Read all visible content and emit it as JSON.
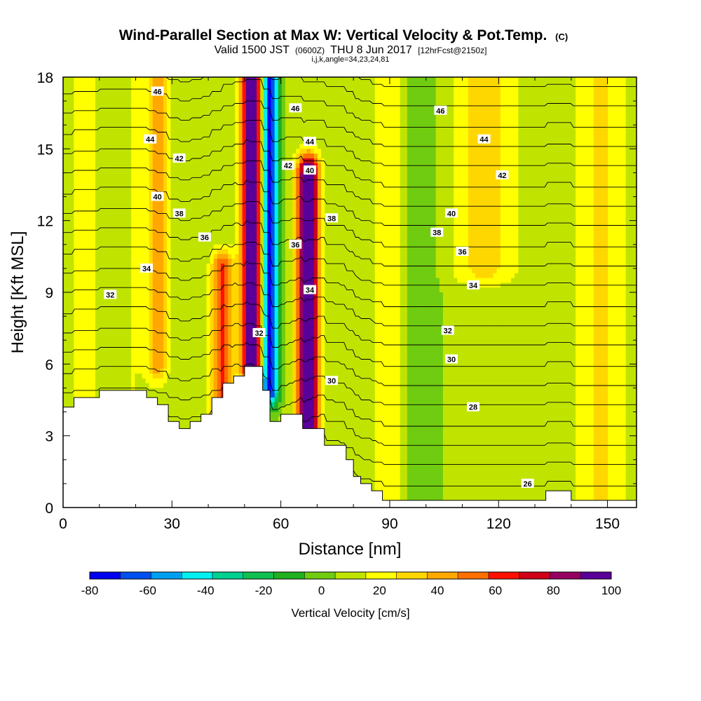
{
  "chart_data": {
    "type": "heatmap",
    "title": "Wind-Parallel Section at Max W: Vertical Velocity & Pot.Temp.",
    "title_units": "(C)",
    "subtitle": {
      "valid": "Valid 1500 JST",
      "utc": "(0600Z)",
      "date": "THU 8 Jun 2017",
      "forecast": "[12hrFcst@2150z]"
    },
    "subtitle2": "i,j,k,angle=34,23,24,81",
    "xlabel": "Distance [nm]",
    "ylabel": "Height [Kft MSL]",
    "xlim": [
      0,
      158
    ],
    "ylim": [
      0,
      18
    ],
    "xticks": [
      {
        "value": 0,
        "label": "0"
      },
      {
        "value": 30,
        "label": "30"
      },
      {
        "value": 60,
        "label": "60"
      },
      {
        "value": 90,
        "label": "90"
      },
      {
        "value": 120,
        "label": "120"
      },
      {
        "value": 150,
        "label": "150"
      }
    ],
    "yticks": [
      {
        "value": 0,
        "label": "0"
      },
      {
        "value": 3,
        "label": "3"
      },
      {
        "value": 6,
        "label": "6"
      },
      {
        "value": 9,
        "label": "9"
      },
      {
        "value": 12,
        "label": "12"
      },
      {
        "value": 15,
        "label": "15"
      },
      {
        "value": 18,
        "label": "18"
      }
    ],
    "colorbar": {
      "label": "Vertical Velocity [cm/s]",
      "range": [
        -80,
        100
      ],
      "step": 10,
      "ticks": [
        {
          "value": -80,
          "label": "-80"
        },
        {
          "value": -60,
          "label": "-60"
        },
        {
          "value": -40,
          "label": "-40"
        },
        {
          "value": -20,
          "label": "-20"
        },
        {
          "value": 0,
          "label": "0"
        },
        {
          "value": 20,
          "label": "20"
        },
        {
          "value": 40,
          "label": "40"
        },
        {
          "value": 60,
          "label": "60"
        },
        {
          "value": 80,
          "label": "80"
        },
        {
          "value": 100,
          "label": "100"
        }
      ],
      "colors": [
        "#0000f0",
        "#0050f0",
        "#00a0f0",
        "#00f0f0",
        "#00d090",
        "#10c050",
        "#20b020",
        "#70cc10",
        "#c0e400",
        "#ffff00",
        "#ffd700",
        "#ffa800",
        "#ff7000",
        "#ff1000",
        "#d00018",
        "#960060",
        "#5a0098"
      ]
    },
    "velocity_features": [
      {
        "name": "updraft",
        "x": 6,
        "peak": 12,
        "width": 4,
        "ymin": 0,
        "ymax": 18
      },
      {
        "name": "updraft",
        "x": 19,
        "peak": 8,
        "width": 4,
        "ymin": 0,
        "ymax": 18
      },
      {
        "name": "updraft",
        "x": 26,
        "peak": 34,
        "width": 3,
        "ymin": 6,
        "ymax": 18
      },
      {
        "name": "updraft",
        "x": 44,
        "peak": 52,
        "width": 3,
        "ymin": 3,
        "ymax": 10
      },
      {
        "name": "updraft",
        "x": 52,
        "peak": 100,
        "width": 2.8,
        "ymin": 6,
        "ymax": 18
      },
      {
        "name": "downdraft",
        "x": 57,
        "peak": -80,
        "width": 2.4,
        "ymin": 5,
        "ymax": 18
      },
      {
        "name": "updraft",
        "x": 67.5,
        "peak": 100,
        "width": 3,
        "ymin": 3,
        "ymax": 14
      },
      {
        "name": "updraft",
        "x": 90,
        "peak": 18,
        "width": 5,
        "ymin": 0,
        "ymax": 18
      },
      {
        "name": "downdraft",
        "x": 98,
        "peak": -12,
        "width": 5,
        "ymin": 0,
        "ymax": 18
      },
      {
        "name": "updraft",
        "x": 116,
        "peak": 22,
        "width": 9,
        "ymin": 10,
        "ymax": 18
      },
      {
        "name": "updraft",
        "x": 148,
        "peak": 20,
        "width": 7,
        "ymin": 0,
        "ymax": 18
      }
    ],
    "terrain": [
      [
        0,
        4.2
      ],
      [
        3,
        4.2
      ],
      [
        3,
        4.6
      ],
      [
        10,
        4.6
      ],
      [
        10,
        4.9
      ],
      [
        23,
        4.9
      ],
      [
        23,
        4.6
      ],
      [
        26,
        4.6
      ],
      [
        26,
        4.3
      ],
      [
        29,
        4.3
      ],
      [
        29,
        3.6
      ],
      [
        32,
        3.6
      ],
      [
        32,
        3.3
      ],
      [
        35,
        3.3
      ],
      [
        35,
        3.6
      ],
      [
        38,
        3.6
      ],
      [
        38,
        3.9
      ],
      [
        41,
        3.9
      ],
      [
        41,
        4.6
      ],
      [
        44,
        4.6
      ],
      [
        44,
        5.2
      ],
      [
        47,
        5.2
      ],
      [
        47,
        5.5
      ],
      [
        50,
        5.5
      ],
      [
        50,
        5.9
      ],
      [
        55,
        5.9
      ],
      [
        55,
        4.9
      ],
      [
        57,
        4.9
      ],
      [
        57,
        3.6
      ],
      [
        60,
        3.6
      ],
      [
        60,
        3.9
      ],
      [
        66,
        3.9
      ],
      [
        66,
        3.3
      ],
      [
        72,
        3.3
      ],
      [
        72,
        2.6
      ],
      [
        78,
        2.6
      ],
      [
        78,
        2.0
      ],
      [
        80,
        2.0
      ],
      [
        80,
        1.3
      ],
      [
        82,
        1.3
      ],
      [
        82,
        1.0
      ],
      [
        85,
        1.0
      ],
      [
        85,
        0.7
      ],
      [
        88,
        0.7
      ],
      [
        88,
        0.3
      ],
      [
        133,
        0.3
      ],
      [
        133,
        0.7
      ],
      [
        140,
        0.7
      ],
      [
        140,
        0.3
      ],
      [
        158,
        0.3
      ]
    ],
    "theta_contours": {
      "levels": [
        26,
        27,
        28,
        29,
        30,
        31,
        32,
        33,
        34,
        35,
        36,
        37,
        38,
        39,
        40,
        41,
        42,
        43,
        44,
        45,
        46,
        47,
        48
      ],
      "labels": [
        {
          "value": "26",
          "x": 128,
          "y": 1.0
        },
        {
          "value": "28",
          "x": 113,
          "y": 4.2
        },
        {
          "value": "30",
          "x": 74,
          "y": 5.3
        },
        {
          "value": "30",
          "x": 107,
          "y": 6.2
        },
        {
          "value": "32",
          "x": 54,
          "y": 7.3
        },
        {
          "value": "32",
          "x": 106,
          "y": 7.4
        },
        {
          "value": "32",
          "x": 13,
          "y": 8.9
        },
        {
          "value": "34",
          "x": 68,
          "y": 9.1
        },
        {
          "value": "34",
          "x": 113,
          "y": 9.3
        },
        {
          "value": "34",
          "x": 23,
          "y": 10.0
        },
        {
          "value": "36",
          "x": 39,
          "y": 11.3
        },
        {
          "value": "36",
          "x": 110,
          "y": 10.7
        },
        {
          "value": "36",
          "x": 64,
          "y": 11.0
        },
        {
          "value": "38",
          "x": 32,
          "y": 12.3
        },
        {
          "value": "38",
          "x": 103,
          "y": 11.5
        },
        {
          "value": "38",
          "x": 74,
          "y": 12.1
        },
        {
          "value": "40",
          "x": 26,
          "y": 13.0
        },
        {
          "value": "40",
          "x": 68,
          "y": 14.1
        },
        {
          "value": "40",
          "x": 107,
          "y": 12.3
        },
        {
          "value": "42",
          "x": 32,
          "y": 14.6
        },
        {
          "value": "42",
          "x": 62,
          "y": 14.3
        },
        {
          "value": "42",
          "x": 121,
          "y": 13.9
        },
        {
          "value": "44",
          "x": 24,
          "y": 15.4
        },
        {
          "value": "44",
          "x": 68,
          "y": 15.3
        },
        {
          "value": "44",
          "x": 116,
          "y": 15.4
        },
        {
          "value": "46",
          "x": 26,
          "y": 17.4
        },
        {
          "value": "46",
          "x": 64,
          "y": 16.7
        },
        {
          "value": "46",
          "x": 104,
          "y": 16.6
        }
      ]
    }
  }
}
